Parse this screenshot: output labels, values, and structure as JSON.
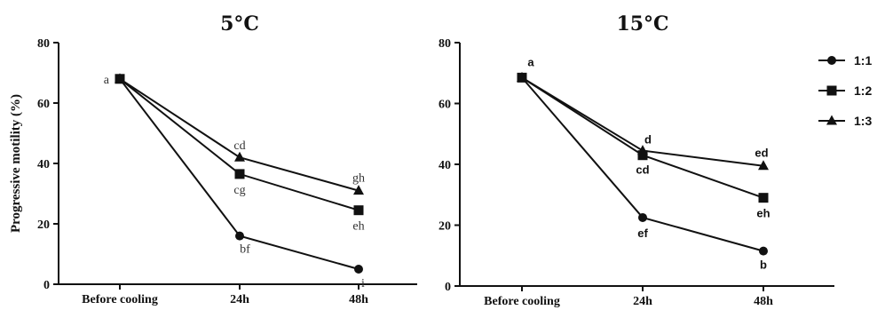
{
  "chart_data": [
    {
      "type": "line",
      "title": "5°C",
      "ylabel": "Progressive motility (%)",
      "xlabel": "",
      "categories": [
        "Before cooling",
        "24h",
        "48h"
      ],
      "ylim": [
        0,
        80
      ],
      "yticks": [
        "0",
        "20",
        "40",
        "60",
        "80"
      ],
      "series": [
        {
          "name": "1:1",
          "marker": "circle",
          "values": [
            68,
            16,
            5
          ],
          "labels": [
            "a",
            "bf",
            "i"
          ]
        },
        {
          "name": "1:2",
          "marker": "square",
          "values": [
            68,
            36.5,
            24.5
          ],
          "labels": [
            "",
            "cg",
            "eh"
          ]
        },
        {
          "name": "1:3",
          "marker": "triangle",
          "values": [
            68,
            42,
            31
          ],
          "labels": [
            "",
            "cd",
            "gh"
          ]
        }
      ]
    },
    {
      "type": "line",
      "title": "15°C",
      "ylabel": "",
      "xlabel": "",
      "categories": [
        "Before cooling",
        "24h",
        "48h"
      ],
      "ylim": [
        0,
        80
      ],
      "yticks": [
        "0",
        "20",
        "40",
        "60",
        "80"
      ],
      "series": [
        {
          "name": "1:1",
          "marker": "circle",
          "values": [
            68.5,
            22.5,
            11.5
          ],
          "labels": [
            "a",
            "ef",
            "b"
          ]
        },
        {
          "name": "1:2",
          "marker": "square",
          "values": [
            68.5,
            43,
            29
          ],
          "labels": [
            "",
            "cd",
            "eh"
          ]
        },
        {
          "name": "1:3",
          "marker": "triangle",
          "values": [
            68.5,
            44.5,
            39.5
          ],
          "labels": [
            "",
            "d",
            "ed"
          ]
        }
      ]
    }
  ],
  "legend": {
    "placement": "right",
    "items": [
      {
        "label": "1:1",
        "marker": "circle"
      },
      {
        "label": "1:2",
        "marker": "square"
      },
      {
        "label": "1:3",
        "marker": "triangle"
      }
    ]
  }
}
